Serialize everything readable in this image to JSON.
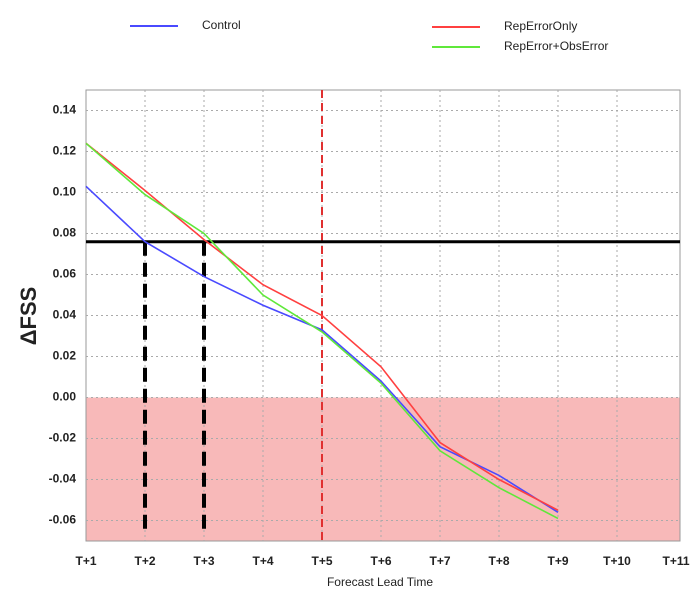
{
  "chart_data": {
    "type": "line",
    "xlabel": "Forecast Lead Time",
    "ylabel": "ΔFSS",
    "categories": [
      "T+1",
      "T+2",
      "T+3",
      "T+4",
      "T+5",
      "T+6",
      "T+7",
      "T+8",
      "T+9",
      "T+10",
      "T+11"
    ],
    "series": [
      {
        "name": "Control",
        "color": "#4a4aff",
        "values": [
          0.103,
          0.076,
          0.059,
          0.045,
          0.033,
          0.008,
          -0.024,
          -0.038,
          -0.056,
          null,
          null
        ]
      },
      {
        "name": "RepErrorOnly",
        "color": "#ff4040",
        "values": [
          0.124,
          0.101,
          0.077,
          0.055,
          0.04,
          0.015,
          -0.022,
          -0.04,
          -0.055,
          null,
          null
        ]
      },
      {
        "name": "RepError+ObsError",
        "color": "#5fe83a",
        "values": [
          0.124,
          0.099,
          0.08,
          0.05,
          0.032,
          0.007,
          -0.026,
          -0.044,
          -0.059,
          null,
          null
        ]
      }
    ],
    "ylim": [
      -0.07,
      0.15
    ],
    "yticks": [
      {
        "value": 0.14,
        "label": "0.14"
      },
      {
        "value": 0.12,
        "label": "0.12"
      },
      {
        "value": 0.1,
        "label": "0.10"
      },
      {
        "value": 0.08,
        "label": "0.08"
      },
      {
        "value": 0.06,
        "label": "0.06"
      },
      {
        "value": 0.04,
        "label": "0.04"
      },
      {
        "value": 0.02,
        "label": "0.02"
      },
      {
        "value": 0,
        "label": "0.00"
      },
      {
        "value": -0.02,
        "label": "-0.02"
      },
      {
        "value": -0.04,
        "label": "-0.04"
      },
      {
        "value": -0.06,
        "label": "-0.06"
      }
    ],
    "grid": true,
    "threshold": 0.076,
    "threshold_drop_indices": [
      1,
      2
    ],
    "red_dashed_index": 4,
    "shade_below": 0,
    "shade_color": "#f8b9b9"
  }
}
